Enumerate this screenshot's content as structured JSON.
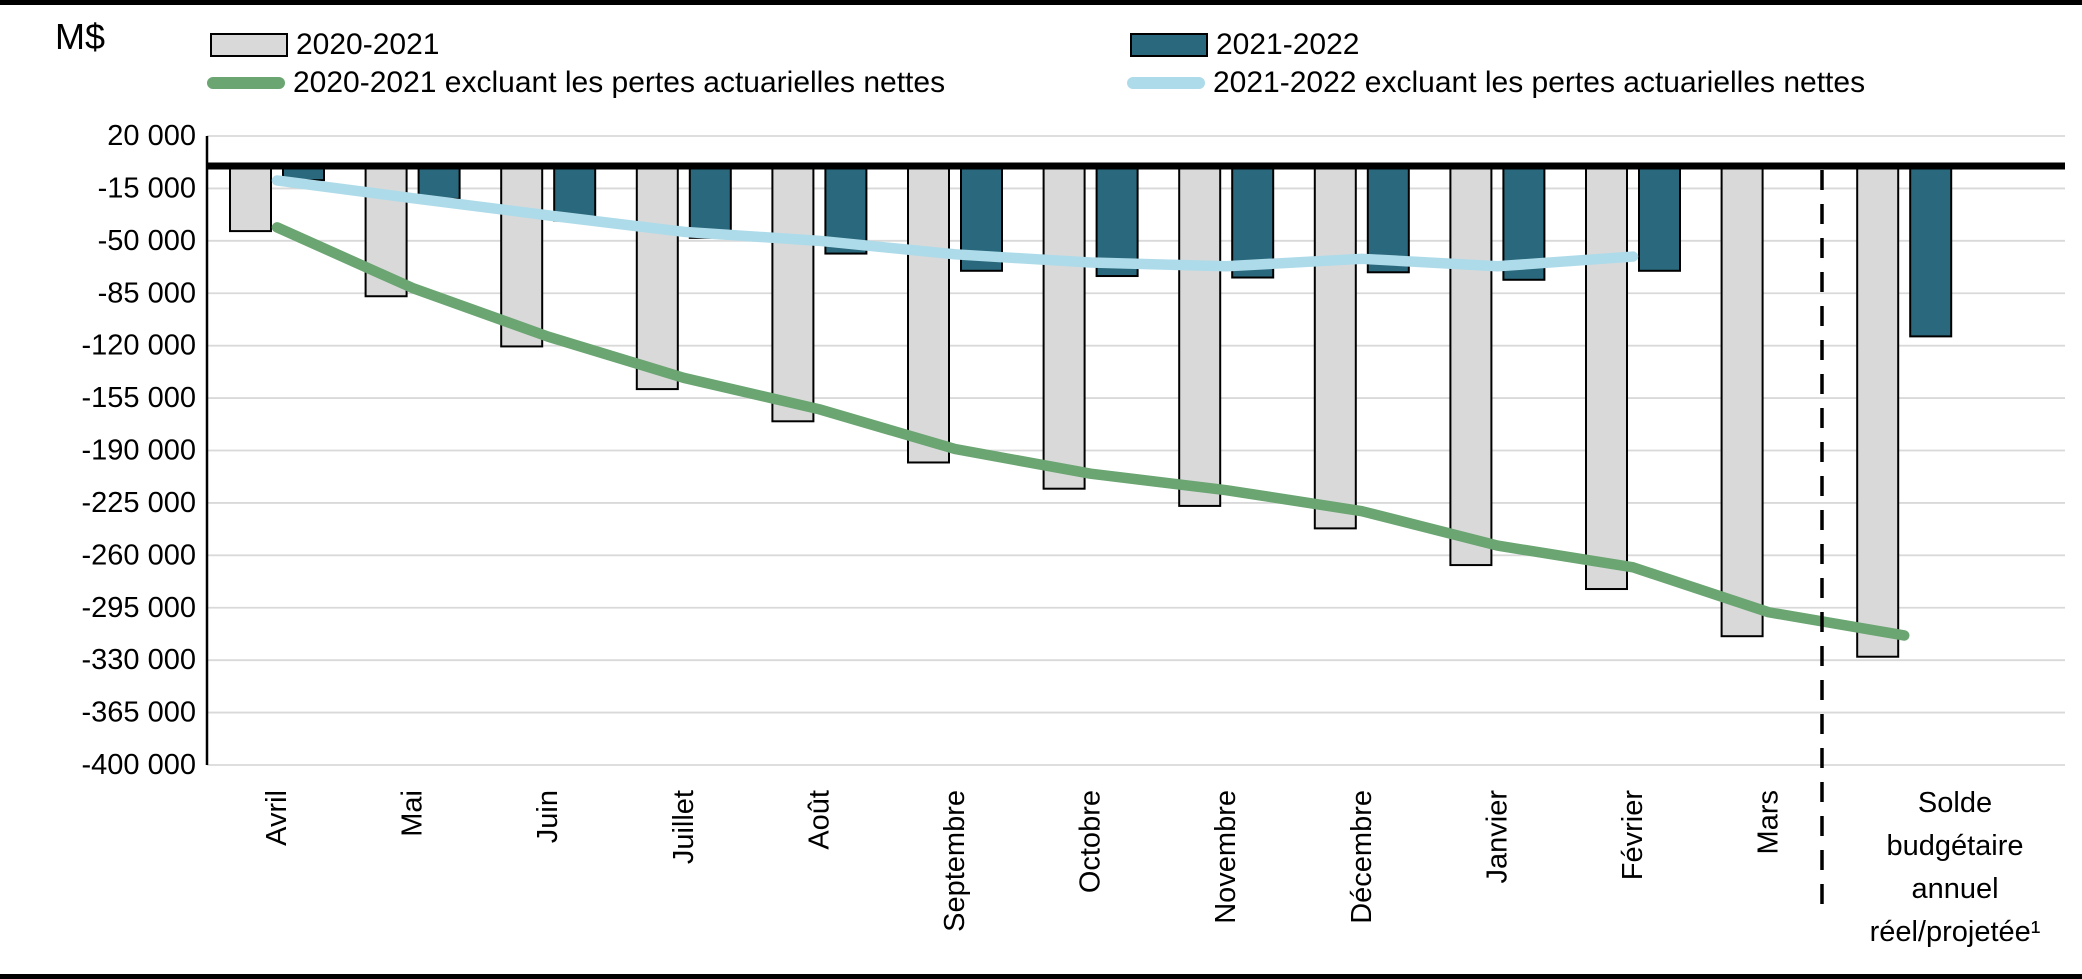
{
  "page": {
    "unit_label": "M$"
  },
  "chart_data": {
    "type": "bar",
    "subtype": "combo-bar-line",
    "title": "",
    "ylabel": "M$",
    "xlabel": "",
    "grid": true,
    "legend_position": "top",
    "ylim": [
      -400000,
      20000
    ],
    "y_axis": {
      "ticks": [
        20000,
        -15000,
        -50000,
        -85000,
        -120000,
        -155000,
        -190000,
        -225000,
        -260000,
        -295000,
        -330000,
        -365000,
        -400000
      ],
      "tick_labels": [
        "20 000",
        "-15 000",
        "-50 000",
        "-85 000",
        "-120 000",
        "-155 000",
        "-190 000",
        "-225 000",
        "-260 000",
        "-295 000",
        "-330 000",
        "-365 000",
        "-400 000"
      ]
    },
    "categories": [
      "Avril",
      "Mai",
      "Juin",
      "Juillet",
      "Août",
      "Septembre",
      "Octobre",
      "Novembre",
      "Décembre",
      "Janvier",
      "Février",
      "Mars",
      "Solde budgétaire annuel réel/projetée¹"
    ],
    "last_category_lines": [
      "Solde",
      "budgétaire",
      "annuel",
      "réel/projetée¹"
    ],
    "series": [
      {
        "name": "2020-2021",
        "type": "bar",
        "color": "#D9D9D9",
        "border_color": "#000000",
        "values": [
          -43500,
          -87000,
          -120500,
          -149000,
          -170500,
          -198000,
          -215500,
          -227000,
          -242000,
          -266500,
          -282500,
          -314000,
          -327700
        ]
      },
      {
        "name": "2021-2022",
        "type": "bar",
        "color": "#2A697D",
        "border_color": "#000000",
        "values": [
          -9500,
          -22000,
          -36500,
          -48000,
          -58500,
          -70000,
          -73500,
          -74500,
          -71000,
          -76000,
          -70000,
          null,
          -113800
        ]
      },
      {
        "name": "2020-2021 excluant les pertes actuarielles nettes",
        "type": "line",
        "color": "#6AA572",
        "values": [
          -41000,
          -81500,
          -114000,
          -141500,
          -162500,
          -189000,
          -205500,
          -216500,
          -230500,
          -253500,
          -268000,
          -298000,
          -313500
        ]
      },
      {
        "name": "2021-2022 excluant les pertes actuarielles nettes",
        "type": "line",
        "color": "#AEDBE9",
        "values": [
          -9700,
          -21500,
          -33000,
          -44000,
          -50000,
          -59000,
          -64500,
          -67000,
          -62000,
          -67000,
          -60500,
          null,
          null
        ]
      }
    ],
    "separator": {
      "style": "dashed",
      "color": "#000000",
      "between": "Mars",
      "and": "Solde budgétaire annuel réel/projetée¹"
    },
    "zero_line_color": "#000000",
    "gridline_color": "#D9D9D9"
  }
}
